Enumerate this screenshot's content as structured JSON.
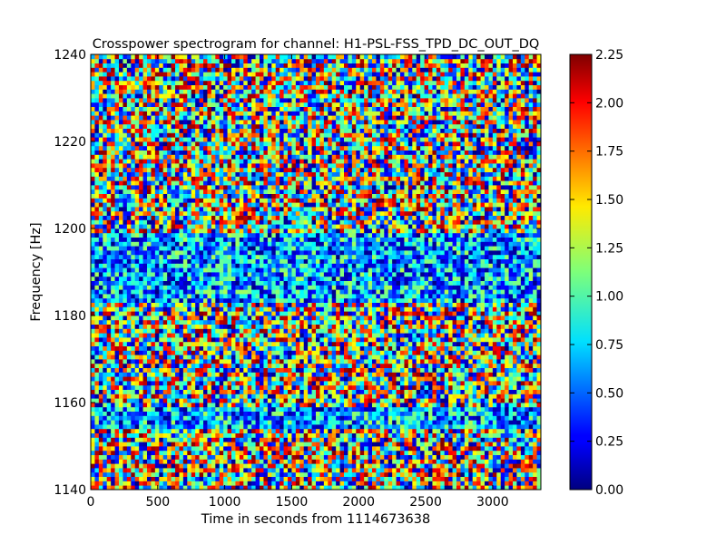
{
  "chart_data": {
    "type": "heatmap",
    "title": "Crosspower spectrogram for channel: H1-PSL-FSS_TPD_DC_OUT_DQ",
    "xlabel": "Time in seconds from 1114673638",
    "ylabel": "Frequency [Hz]",
    "xlim": [
      0,
      3360
    ],
    "ylim": [
      1140,
      1240
    ],
    "x_ticks": [
      "0",
      "500",
      "1000",
      "1500",
      "2000",
      "2500",
      "3000"
    ],
    "y_ticks": [
      "1140",
      "1160",
      "1180",
      "1200",
      "1220",
      "1240"
    ],
    "colorbar": {
      "colormap": "jet",
      "range": [
        0,
        2.25
      ],
      "ticks": [
        "0.00",
        "0.25",
        "0.50",
        "0.75",
        "1.00",
        "1.25",
        "1.50",
        "1.75",
        "2.00",
        "2.25"
      ]
    },
    "grid_columns": 112,
    "grid_rows": 100,
    "low_power_bands": [
      {
        "freq_from": 1183,
        "freq_to": 1199
      },
      {
        "freq_from": 1154,
        "freq_to": 1159
      }
    ],
    "grid": false
  }
}
